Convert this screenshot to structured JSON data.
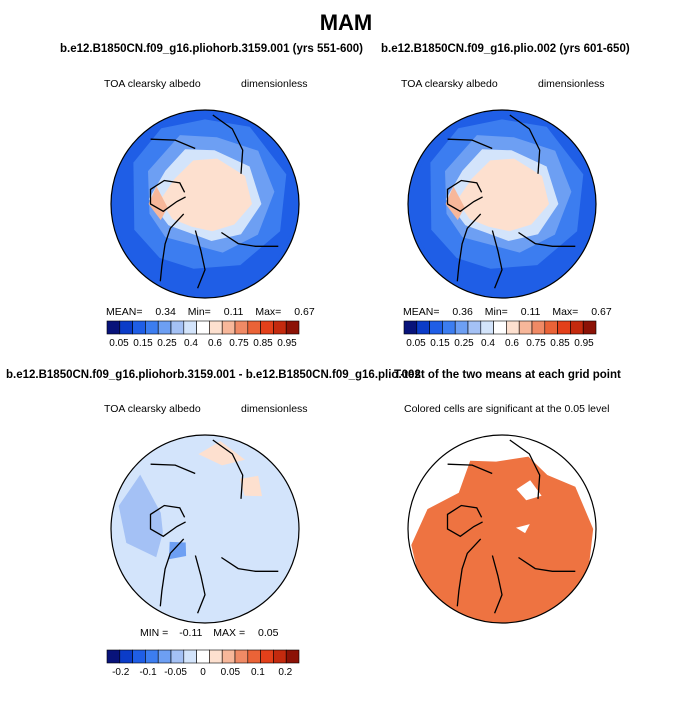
{
  "figure": {
    "main_title": "MAM"
  },
  "panels": [
    {
      "title": "b.e12.B1850CN.f09_g16.pliohorb.3159.001 (yrs 551-600)",
      "left_label": "TOA clearsky albedo",
      "right_label": "dimensionless",
      "stats": {
        "mean_label": "MEAN=",
        "mean": "0.34",
        "min_label": "Min=",
        "min": "0.11",
        "max_label": "Max=",
        "max": "0.67"
      }
    },
    {
      "title": "b.e12.B1850CN.f09_g16.plio.002 (yrs 601-650)",
      "left_label": "TOA clearsky albedo",
      "right_label": "dimensionless",
      "stats": {
        "mean_label": "MEAN=",
        "mean": "0.36",
        "min_label": "Min=",
        "min": "0.11",
        "max_label": "Max=",
        "max": "0.67"
      }
    },
    {
      "title": "b.e12.B1850CN.f09_g16.pliohorb.3159.001 - b.e12.B1850CN.f09_g16.plio.002",
      "left_label": "TOA clearsky albedo",
      "right_label": "dimensionless",
      "stats": {
        "min_label": "MIN =",
        "min": "-0.11",
        "max_label": "MAX =",
        "max": "0.05"
      }
    },
    {
      "title": "T-test of the two means at each grid point",
      "left_label": "Colored cells are significant at the 0.05 level",
      "right_label": ""
    }
  ],
  "chart_data": [
    {
      "type": "heatmap",
      "projection": "north polar stereographic",
      "title": "b.e12.B1850CN.f09_g16.pliohorb.3159.001 (yrs 551-600)",
      "variable": "TOA clearsky albedo",
      "units": "dimensionless",
      "mean": 0.34,
      "min": 0.11,
      "max": 0.67,
      "colorbar_ticks": [
        "0.05",
        "0.15",
        "0.25",
        "0.4",
        "0.6",
        "0.75",
        "0.85",
        "0.95"
      ],
      "colors": [
        "#08137a",
        "#0b3cc8",
        "#1f5ee6",
        "#3c7df0",
        "#6d9ff3",
        "#a4c1f5",
        "#d3e4fb",
        "#ffffff",
        "#fde0cf",
        "#f7b79a",
        "#f08a65",
        "#ea6337",
        "#e3401a",
        "#c42a0e",
        "#8c1206"
      ]
    },
    {
      "type": "heatmap",
      "projection": "north polar stereographic",
      "title": "b.e12.B1850CN.f09_g16.plio.002 (yrs 601-650)",
      "variable": "TOA clearsky albedo",
      "units": "dimensionless",
      "mean": 0.36,
      "min": 0.11,
      "max": 0.67,
      "colorbar_ticks": [
        "0.05",
        "0.15",
        "0.25",
        "0.4",
        "0.6",
        "0.75",
        "0.85",
        "0.95"
      ],
      "colors": [
        "#08137a",
        "#0b3cc8",
        "#1f5ee6",
        "#3c7df0",
        "#6d9ff3",
        "#a4c1f5",
        "#d3e4fb",
        "#ffffff",
        "#fde0cf",
        "#f7b79a",
        "#f08a65",
        "#ea6337",
        "#e3401a",
        "#c42a0e",
        "#8c1206"
      ]
    },
    {
      "type": "heatmap",
      "projection": "north polar stereographic",
      "title": "b.e12.B1850CN.f09_g16.pliohorb.3159.001 - b.e12.B1850CN.f09_g16.plio.002",
      "variable": "TOA clearsky albedo",
      "units": "dimensionless",
      "min": -0.11,
      "max": 0.05,
      "colorbar_ticks": [
        "-0.2",
        "-0.1",
        "-0.05",
        "0",
        "0.05",
        "0.1",
        "0.2"
      ],
      "colors": [
        "#08137a",
        "#0b3cc8",
        "#1f5ee6",
        "#3c7df0",
        "#6d9ff3",
        "#a4c1f5",
        "#d3e4fb",
        "#ffffff",
        "#fde0cf",
        "#f7b79a",
        "#f08a65",
        "#ea6337",
        "#e3401a",
        "#c42a0e",
        "#8c1206"
      ]
    },
    {
      "type": "heatmap",
      "projection": "north polar stereographic",
      "title": "T-test of the two means at each grid point",
      "annotation": "Colored cells are significant at the 0.05 level",
      "significant_color": "#ee7341"
    }
  ]
}
